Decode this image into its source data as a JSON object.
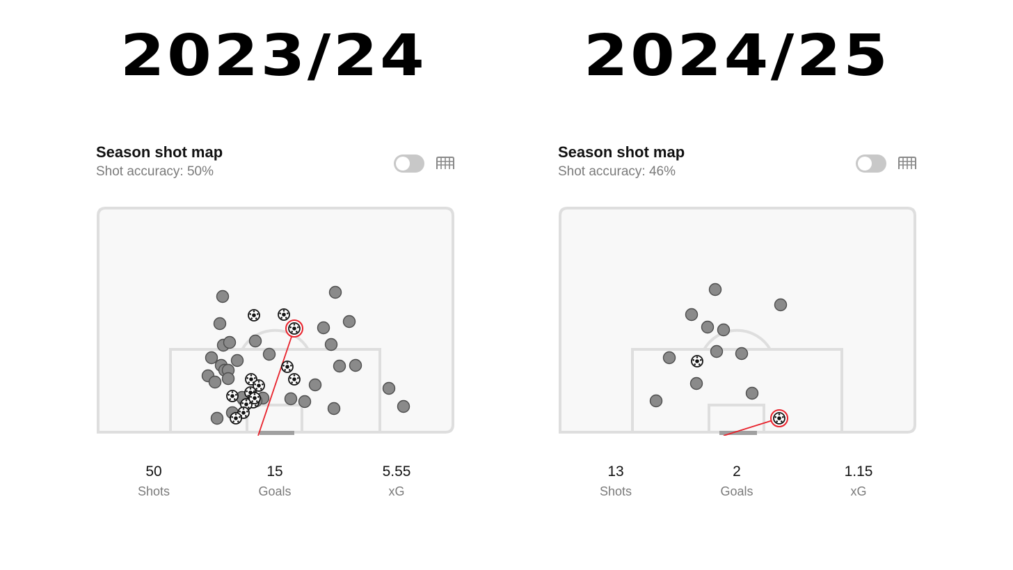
{
  "seasons": [
    {
      "title": "2023/24",
      "card_title": "Season shot map",
      "accuracy": "Shot accuracy: 50%",
      "stats": [
        {
          "value": "50",
          "label": "Shots"
        },
        {
          "value": "15",
          "label": "Goals"
        },
        {
          "value": "5.55",
          "label": "xG"
        }
      ]
    },
    {
      "title": "2024/25",
      "card_title": "Season shot map",
      "accuracy": "Shot accuracy: 46%",
      "stats": [
        {
          "value": "13",
          "label": "Shots"
        },
        {
          "value": "2",
          "label": "Goals"
        },
        {
          "value": "1.15",
          "label": "xG"
        }
      ]
    }
  ],
  "colors": {
    "shot": "#8a8a8a",
    "highlight": "#e8202a",
    "pitch_fill": "#f8f8f8",
    "pitch_lines": "#dedede"
  },
  "icons": {
    "toggle": "toggle-switch-off",
    "goal": "goal-net-icon",
    "goal_shot": "soccer-ball-icon"
  }
}
